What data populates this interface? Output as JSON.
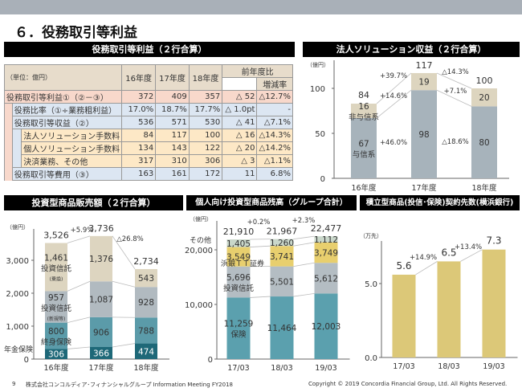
{
  "page": {
    "title": "６．役務取引等利益",
    "footer_page": "9",
    "footer_company": "株式会社コンコルディア･フィナンシャルグループ  Information Meeting FY2018",
    "footer_copyright": "Copyright © 2019 Concordia Financial Group, Ltd. All Rights Reserved."
  },
  "table": {
    "title": "役務取引等利益（２行合算）",
    "unit": "（単位：億円）",
    "headers": [
      "16年度",
      "17年度",
      "18年度",
      "前年度比",
      "増減率"
    ],
    "rows": [
      {
        "label": "役務取引等利益①（②－③）",
        "values": [
          "372",
          "409",
          "357",
          "△ 52",
          "△12.7%"
        ]
      },
      {
        "label": "役務比率（①÷業務粗利益）",
        "values": [
          "17.0%",
          "18.7%",
          "17.7%",
          "△ 1.0pt",
          "-"
        ]
      },
      {
        "label": "役務取引等収益（②）",
        "values": [
          "536",
          "571",
          "530",
          "△ 41",
          "△7.1%"
        ]
      },
      {
        "label": "法人ソリューション手数料",
        "values": [
          "84",
          "117",
          "100",
          "△ 16",
          "△14.3%"
        ]
      },
      {
        "label": "個人ソリューション手数料",
        "values": [
          "134",
          "143",
          "122",
          "△ 20",
          "△14.2%"
        ]
      },
      {
        "label": "決済業務、その他",
        "values": [
          "317",
          "310",
          "306",
          "△ 3",
          "△1.1%"
        ]
      },
      {
        "label": "役務取引等費用（③）",
        "values": [
          "163",
          "161",
          "172",
          "11",
          "6.8%"
        ]
      }
    ]
  },
  "chart_data": [
    {
      "type": "bar",
      "stacked": true,
      "title": "法人ソリューション収益（２行合算）",
      "unit": "（億円）",
      "categories": [
        "16年度",
        "17年度",
        "18年度"
      ],
      "yticks": [
        0,
        50,
        100
      ],
      "ylim": [
        0,
        130
      ],
      "series": [
        {
          "name": "与信系",
          "values": [
            67,
            98,
            80
          ],
          "color": "#a7b3bb"
        },
        {
          "name": "非与信系",
          "values": [
            16,
            19,
            20
          ],
          "color": "#ddd5bf"
        }
      ],
      "totals": [
        84,
        117,
        100
      ],
      "annotations": [
        "+39.7%",
        "+14.6%",
        "+46.0%",
        "△14.3%",
        "+7.1%",
        "△18.6%"
      ]
    },
    {
      "type": "bar",
      "stacked": true,
      "title": "投資型商品販売額（２行合算）",
      "unit": "（億円）",
      "categories": [
        "16年度",
        "17年度",
        "18年度"
      ],
      "yticks": [
        0,
        1000,
        2000,
        3000
      ],
      "ylim": [
        0,
        4000
      ],
      "series": [
        {
          "name": "年金保険",
          "values": [
            306,
            366,
            474
          ],
          "color": "#1e6878"
        },
        {
          "name": "終身保険",
          "values": [
            800,
            906,
            788
          ],
          "color": "#5b9ba9"
        },
        {
          "name": "投資信託",
          "sub": "(新規等)",
          "values": [
            957,
            1087,
            928
          ],
          "color": "#b1bac0"
        },
        {
          "name": "投資信託",
          "sub": "(乗換)",
          "values": [
            1461,
            1376,
            543
          ],
          "color": "#ddd5c0"
        }
      ],
      "totals": [
        3526,
        3736,
        2734
      ],
      "annotations": [
        "+5.9%",
        "△26.8%"
      ]
    },
    {
      "type": "bar",
      "stacked": true,
      "title": "個人向け投資型商品残高（グループ合計）",
      "unit": "（億円）",
      "categories": [
        "17/03",
        "18/03",
        "19/03"
      ],
      "yticks": [
        0,
        10000,
        20000
      ],
      "ylim": [
        0,
        23500
      ],
      "series": [
        {
          "name": "保険",
          "values": [
            11259,
            11464,
            12003
          ],
          "color": "#5ba0ae"
        },
        {
          "name": "投資信託",
          "values": [
            5696,
            5501,
            5612
          ],
          "color": "#b4bdc3"
        },
        {
          "name": "浜銀ＴＴ証券",
          "values": [
            3549,
            3741,
            3749
          ],
          "color": "#e8cf6e"
        },
        {
          "name": "その他",
          "values": [
            1405,
            1260,
            1112
          ],
          "color": "#c9d7ca"
        }
      ],
      "totals": [
        21910,
        21967,
        22477
      ],
      "annotations": [
        "+0.2%",
        "+2.3%"
      ]
    },
    {
      "type": "bar",
      "title": "積立型商品(投信･保険)契約先数(横浜銀行)",
      "unit": "（万先）",
      "categories": [
        "17/03",
        "18/03",
        "19/03"
      ],
      "yticks": [
        0.0,
        5.0
      ],
      "ylim": [
        0,
        8.5
      ],
      "series": [
        {
          "values": [
            5.6,
            6.5,
            7.3
          ],
          "color": "#dcc878"
        }
      ],
      "annotations": [
        "+14.9%",
        "+13.4%"
      ]
    }
  ]
}
